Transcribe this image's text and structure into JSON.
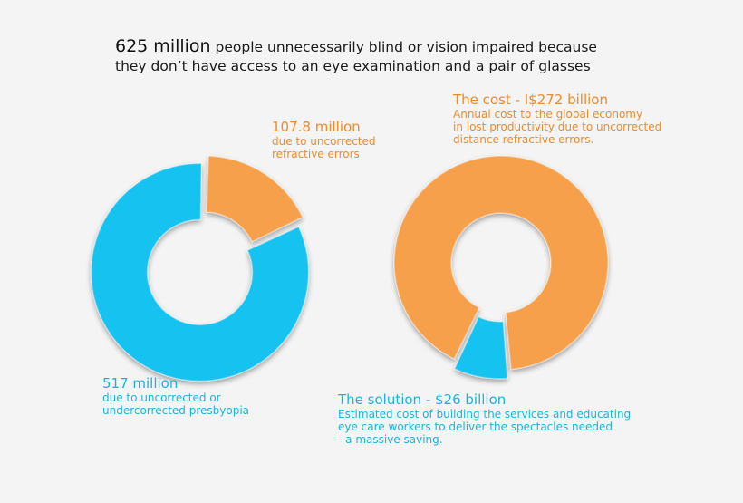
{
  "title": {
    "emphasis": "625 million",
    "lines": [
      " people unnecessarily blind or vision impaired because",
      "they don’t have access to an eye examination and a pair of glasses"
    ]
  },
  "chart_data": [
    {
      "type": "donut",
      "values": [
        107.8,
        517
      ],
      "value_labels": [
        "107.8 million",
        "517 million"
      ],
      "descriptions": [
        [
          "due to uncorrected",
          "refractive errors"
        ],
        [
          "due to uncorrected or",
          "undercorrected presbyopia"
        ]
      ],
      "colors": [
        "#f7a04c",
        "#16c2f0"
      ],
      "label_colors": [
        "#f08a2a",
        "#1bb4e0"
      ]
    },
    {
      "type": "donut",
      "values": [
        272,
        26
      ],
      "value_labels": [
        "The cost - I$272 billion",
        "The solution - $26 billion"
      ],
      "descriptions": [
        [
          "Annual cost to the global economy",
          "in lost productivity due to uncorrected",
          "distance refractive errors."
        ],
        [
          "Estimated cost of building the services and educating",
          "eye care workers to deliver the spectacles needed",
          " - a massive saving."
        ]
      ],
      "colors": [
        "#f7a04c",
        "#16c2f0"
      ],
      "label_colors": [
        "#f08a2a",
        "#1bb4e0"
      ]
    }
  ]
}
